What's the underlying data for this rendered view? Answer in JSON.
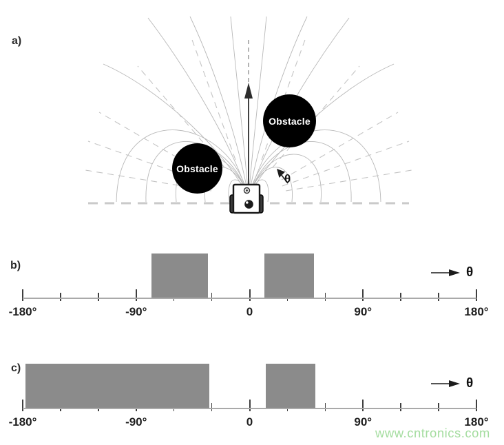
{
  "panel_a": {
    "label": "a)",
    "obstacle_left_label": "Obstacle",
    "obstacle_right_label": "Obstacle",
    "theta_label": "θ"
  },
  "panel_b": {
    "label": "b)",
    "theta_label": "θ"
  },
  "panel_c": {
    "label": "c)",
    "theta_label": "θ"
  },
  "watermark": {
    "text": "www.cntronics.com"
  },
  "colors": {
    "bar": "#8b8b8b",
    "axis": "#a9a9a9",
    "tick": "#3f3f3f",
    "ink": "#1f1f1f",
    "field_line": "#b8b8b8",
    "dashed_line": "#c4c4c4",
    "ground_line": "#cacaca",
    "obstacle_fill": "#000000",
    "obstacle_text": "#ffffff",
    "watermark_green": "#a5dda0"
  },
  "chart_data": [
    {
      "id": "b",
      "type": "bar",
      "x_axis_symbol": "θ",
      "x_unit": "degrees",
      "xlim": [
        -180,
        180
      ],
      "tick_step_minor": 30,
      "major_ticks": [
        -180,
        -90,
        0,
        90,
        180
      ],
      "major_tick_labels": [
        "-180°",
        "-90°",
        "0",
        "90°",
        "180°"
      ],
      "occupied_intervals_deg": [
        [
          -78,
          -33
        ],
        [
          12,
          51
        ]
      ],
      "values": [
        1,
        1
      ],
      "grid": false,
      "legend": false
    },
    {
      "id": "c",
      "type": "bar",
      "x_axis_symbol": "θ",
      "x_unit": "degrees",
      "xlim": [
        -180,
        180
      ],
      "tick_step_minor": 30,
      "major_ticks": [
        -180,
        -90,
        0,
        90,
        180
      ],
      "major_tick_labels": [
        "-180°",
        "-90°",
        "0",
        "90°",
        "180°"
      ],
      "occupied_intervals_deg": [
        [
          -178,
          -32
        ],
        [
          13,
          52
        ]
      ],
      "values": [
        1,
        1
      ],
      "grid": false,
      "legend": false
    }
  ]
}
